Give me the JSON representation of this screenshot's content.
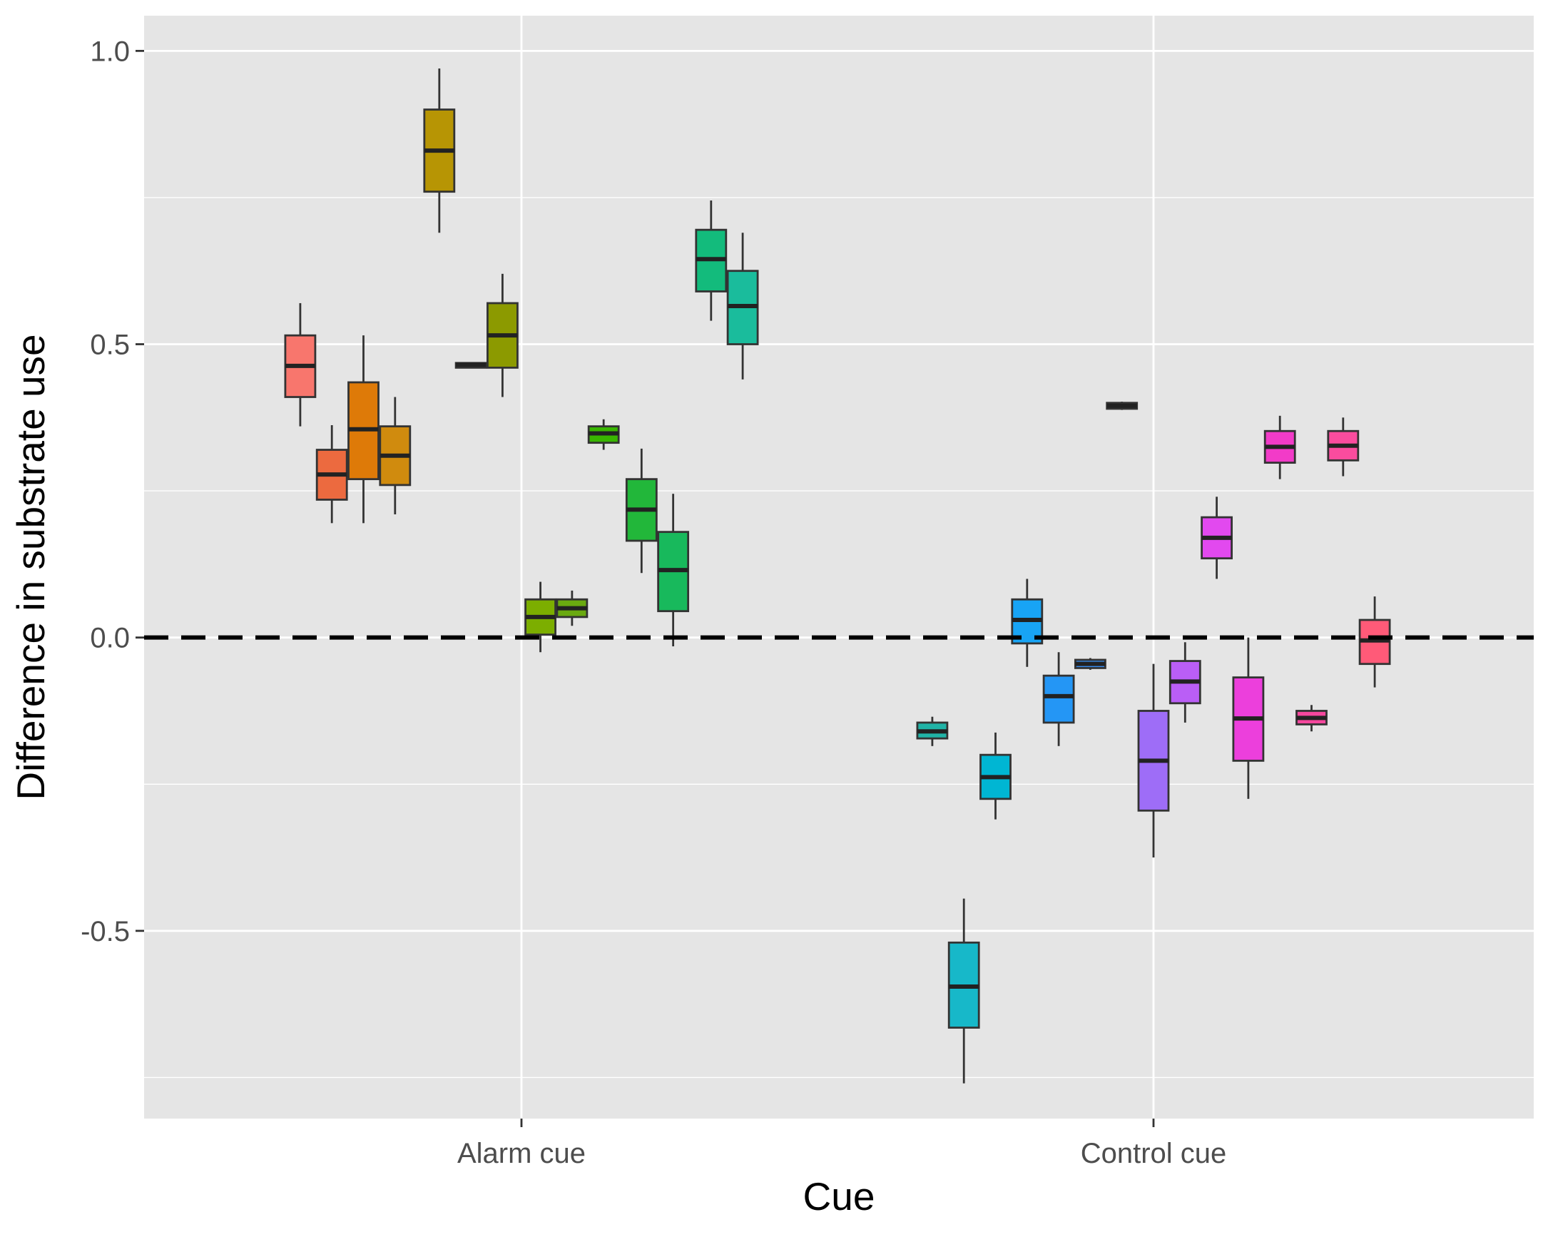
{
  "chart_data": {
    "type": "boxplot",
    "title": "",
    "xlabel": "Cue",
    "ylabel": "Difference in substrate use",
    "categories": [
      "Alarm cue",
      "Control cue"
    ],
    "ylim": [
      -0.82,
      1.06
    ],
    "yticks": [
      -0.5,
      0.0,
      0.5,
      1.0
    ],
    "ytick_labels": [
      "-0.5",
      "0.0",
      "0.5",
      "1.0"
    ],
    "grid": true,
    "legend": "none",
    "reference_line": {
      "y": 0.0,
      "style": "dashed"
    },
    "boxes": [
      {
        "category": "Alarm cue",
        "offset": -0.35,
        "color": "#F8766D",
        "min": 0.36,
        "q1": 0.41,
        "median": 0.463,
        "q3": 0.515,
        "max": 0.57
      },
      {
        "category": "Alarm cue",
        "offset": -0.3,
        "color": "#EC6A3F",
        "min": 0.195,
        "q1": 0.235,
        "median": 0.278,
        "q3": 0.32,
        "max": 0.362
      },
      {
        "category": "Alarm cue",
        "offset": -0.25,
        "color": "#DE7A08",
        "min": 0.195,
        "q1": 0.27,
        "median": 0.355,
        "q3": 0.435,
        "max": 0.515
      },
      {
        "category": "Alarm cue",
        "offset": -0.2,
        "color": "#D08B0E",
        "min": 0.21,
        "q1": 0.26,
        "median": 0.31,
        "q3": 0.36,
        "max": 0.41
      },
      {
        "category": "Alarm cue",
        "offset": -0.13,
        "color": "#B79504",
        "min": 0.69,
        "q1": 0.76,
        "median": 0.83,
        "q3": 0.9,
        "max": 0.97
      },
      {
        "category": "Alarm cue",
        "offset": -0.08,
        "color": "#A3A500",
        "min": 0.46,
        "q1": 0.46,
        "median": 0.465,
        "q3": 0.468,
        "max": 0.468
      },
      {
        "category": "Alarm cue",
        "offset": -0.03,
        "color": "#8C9A00",
        "min": 0.41,
        "q1": 0.46,
        "median": 0.515,
        "q3": 0.57,
        "max": 0.62
      },
      {
        "category": "Alarm cue",
        "offset": 0.03,
        "color": "#7CAE00",
        "min": -0.025,
        "q1": 0.005,
        "median": 0.035,
        "q3": 0.065,
        "max": 0.095
      },
      {
        "category": "Alarm cue",
        "offset": 0.08,
        "color": "#6AAA10",
        "min": 0.02,
        "q1": 0.035,
        "median": 0.05,
        "q3": 0.065,
        "max": 0.08
      },
      {
        "category": "Alarm cue",
        "offset": 0.13,
        "color": "#39B600",
        "min": 0.32,
        "q1": 0.332,
        "median": 0.348,
        "q3": 0.36,
        "max": 0.372
      },
      {
        "category": "Alarm cue",
        "offset": 0.19,
        "color": "#22B73A",
        "min": 0.11,
        "q1": 0.165,
        "median": 0.218,
        "q3": 0.27,
        "max": 0.322
      },
      {
        "category": "Alarm cue",
        "offset": 0.24,
        "color": "#18B95C",
        "min": -0.015,
        "q1": 0.045,
        "median": 0.115,
        "q3": 0.18,
        "max": 0.245
      },
      {
        "category": "Alarm cue",
        "offset": 0.3,
        "color": "#13BB7C",
        "min": 0.54,
        "q1": 0.59,
        "median": 0.645,
        "q3": 0.695,
        "max": 0.745
      },
      {
        "category": "Alarm cue",
        "offset": 0.35,
        "color": "#1ABC9C",
        "min": 0.44,
        "q1": 0.5,
        "median": 0.565,
        "q3": 0.625,
        "max": 0.69
      },
      {
        "category": "Control cue",
        "offset": -0.35,
        "color": "#20B3A6",
        "min": -0.185,
        "q1": -0.172,
        "median": -0.16,
        "q3": -0.145,
        "max": -0.135
      },
      {
        "category": "Control cue",
        "offset": -0.3,
        "color": "#17B8C9",
        "min": -0.76,
        "q1": -0.665,
        "median": -0.595,
        "q3": -0.52,
        "max": -0.445
      },
      {
        "category": "Control cue",
        "offset": -0.25,
        "color": "#00B6D3",
        "min": -0.31,
        "q1": -0.275,
        "median": -0.238,
        "q3": -0.2,
        "max": -0.162
      },
      {
        "category": "Control cue",
        "offset": -0.2,
        "color": "#18A4F5",
        "min": -0.05,
        "q1": -0.01,
        "median": 0.03,
        "q3": 0.065,
        "max": 0.1
      },
      {
        "category": "Control cue",
        "offset": -0.15,
        "color": "#2496F5",
        "min": -0.185,
        "q1": -0.145,
        "median": -0.1,
        "q3": -0.065,
        "max": -0.025
      },
      {
        "category": "Control cue",
        "offset": -0.1,
        "color": "#3A8EF0",
        "min": -0.055,
        "q1": -0.052,
        "median": -0.045,
        "q3": -0.038,
        "max": -0.035
      },
      {
        "category": "Control cue",
        "offset": -0.05,
        "color": "#7F96F7",
        "min": 0.388,
        "q1": 0.39,
        "median": 0.395,
        "q3": 0.4,
        "max": 0.402
      },
      {
        "category": "Control cue",
        "offset": 0.0,
        "color": "#9E6DF7",
        "min": -0.375,
        "q1": -0.295,
        "median": -0.21,
        "q3": -0.125,
        "max": -0.045
      },
      {
        "category": "Control cue",
        "offset": 0.05,
        "color": "#BA5EF6",
        "min": -0.145,
        "q1": -0.112,
        "median": -0.075,
        "q3": -0.04,
        "max": -0.008
      },
      {
        "category": "Control cue",
        "offset": 0.1,
        "color": "#E249EF",
        "min": 0.1,
        "q1": 0.135,
        "median": 0.17,
        "q3": 0.205,
        "max": 0.24
      },
      {
        "category": "Control cue",
        "offset": 0.15,
        "color": "#EC3FDC",
        "min": -0.275,
        "q1": -0.21,
        "median": -0.138,
        "q3": -0.068,
        "max": 0.0
      },
      {
        "category": "Control cue",
        "offset": 0.2,
        "color": "#F23BC8",
        "min": 0.27,
        "q1": 0.298,
        "median": 0.325,
        "q3": 0.352,
        "max": 0.378
      },
      {
        "category": "Control cue",
        "offset": 0.25,
        "color": "#F5479D",
        "min": -0.16,
        "q1": -0.148,
        "median": -0.137,
        "q3": -0.125,
        "max": -0.115
      },
      {
        "category": "Control cue",
        "offset": 0.3,
        "color": "#FA4C9E",
        "min": 0.275,
        "q1": 0.302,
        "median": 0.327,
        "q3": 0.352,
        "max": 0.375
      },
      {
        "category": "Control cue",
        "offset": 0.35,
        "color": "#FF5A78",
        "min": -0.085,
        "q1": -0.045,
        "median": -0.005,
        "q3": 0.03,
        "max": 0.07
      }
    ]
  },
  "colors": {
    "panel_background": "#E5E5E5",
    "grid_major": "#FFFFFF",
    "box_outline": "#333333",
    "median_line": "#222222",
    "reference_line": "#000000"
  }
}
